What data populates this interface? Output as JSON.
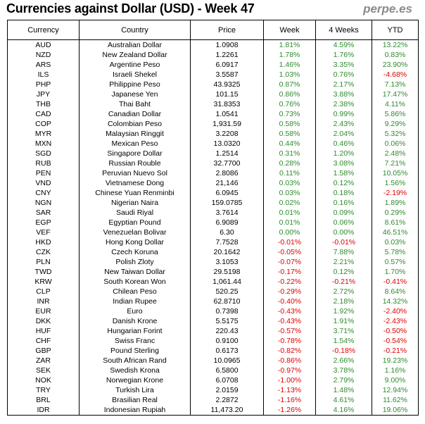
{
  "header": {
    "title": "Currencies against Dollar (USD) - Week 47",
    "brand": "perpe.es"
  },
  "table": {
    "columns": [
      "Currency",
      "Country",
      "Price",
      "Week",
      "4 Weeks",
      "YTD"
    ],
    "rows": [
      [
        "AUD",
        "Australian Dollar",
        "1.0908",
        "1.81%",
        "4.59%",
        "13.22%"
      ],
      [
        "NZD",
        "New Zealand Dollar",
        "1.2261",
        "1.78%",
        "1.76%",
        "0.83%"
      ],
      [
        "ARS",
        "Argentine Peso",
        "6.0917",
        "1.46%",
        "3.35%",
        "23.90%"
      ],
      [
        "ILS",
        "Israeli Shekel",
        "3.5587",
        "1.03%",
        "0.76%",
        "-4.68%"
      ],
      [
        "PHP",
        "Philippine Peso",
        "43.9325",
        "0.87%",
        "2.17%",
        "7.13%"
      ],
      [
        "JPY",
        "Japanese Yen",
        "101.15",
        "0.86%",
        "3.88%",
        "17.47%"
      ],
      [
        "THB",
        "Thai Baht",
        "31.8353",
        "0.76%",
        "2.38%",
        "4.11%"
      ],
      [
        "CAD",
        "Canadian Dollar",
        "1.0541",
        "0.73%",
        "0.99%",
        "5.86%"
      ],
      [
        "COP",
        "Colombian Peso",
        "1,931.59",
        "0.58%",
        "2.43%",
        "9.29%"
      ],
      [
        "MYR",
        "Malaysian Ringgit",
        "3.2208",
        "0.58%",
        "2.04%",
        "5.32%"
      ],
      [
        "MXN",
        "Mexican Peso",
        "13.0320",
        "0.44%",
        "0.46%",
        "0.06%"
      ],
      [
        "SGD",
        "Singapore Dollar",
        "1.2514",
        "0.31%",
        "1.20%",
        "2.48%"
      ],
      [
        "RUB",
        "Russian Rouble",
        "32.7700",
        "0.28%",
        "3.08%",
        "7.21%"
      ],
      [
        "PEN",
        "Peruvian Nuevo Sol",
        "2.8086",
        "0.11%",
        "1.58%",
        "10.05%"
      ],
      [
        "VND",
        "Vietnamese Dong",
        "21,146",
        "0.03%",
        "0.12%",
        "1.56%"
      ],
      [
        "CNY",
        "Chinese Yuan Renminbi",
        "6.0945",
        "0.03%",
        "0.18%",
        "-2.19%"
      ],
      [
        "NGN",
        "Nigerian Naira",
        "159.0785",
        "0.02%",
        "0.16%",
        "1.89%"
      ],
      [
        "SAR",
        "Saudi Riyal",
        "3.7614",
        "0.01%",
        "0.09%",
        "0.29%"
      ],
      [
        "EGP",
        "Egyptian Pound",
        "6.9089",
        "0.01%",
        "0.06%",
        "8.61%"
      ],
      [
        "VEF",
        "Venezuelan Bolivar",
        "6.30",
        "0.00%",
        "0.00%",
        "46.51%"
      ],
      [
        "HKD",
        "Hong Kong Dollar",
        "7.7528",
        "-0.01%",
        "-0.01%",
        "0.03%"
      ],
      [
        "CZK",
        "Czech Koruna",
        "20.1642",
        "-0.05%",
        "7.88%",
        "5.78%"
      ],
      [
        "PLN",
        "Polish Zloty",
        "3.1053",
        "-0.07%",
        "2.21%",
        "0.57%"
      ],
      [
        "TWD",
        "New Taiwan Dollar",
        "29.5198",
        "-0.17%",
        "0.12%",
        "1.70%"
      ],
      [
        "KRW",
        "South Korean Won",
        "1,061.44",
        "-0.22%",
        "-0.21%",
        "-0.41%"
      ],
      [
        "CLP",
        "Chilean Peso",
        "520.25",
        "-0.29%",
        "2.72%",
        "8.64%"
      ],
      [
        "INR",
        "Indian Rupee",
        "62.8710",
        "-0.40%",
        "2.18%",
        "14.32%"
      ],
      [
        "EUR",
        "Euro",
        "0.7398",
        "-0.43%",
        "1.92%",
        "-2.40%"
      ],
      [
        "DKK",
        "Danish Krone",
        "5.5175",
        "-0.43%",
        "1.91%",
        "-2.43%"
      ],
      [
        "HUF",
        "Hungarian Forint",
        "220.43",
        "-0.57%",
        "3.71%",
        "-0.50%"
      ],
      [
        "CHF",
        "Swiss Franc",
        "0.9100",
        "-0.78%",
        "1.54%",
        "-0.54%"
      ],
      [
        "GBP",
        "Pound Sterling",
        "0.6173",
        "-0.82%",
        "-0.18%",
        "-0.21%"
      ],
      [
        "ZAR",
        "South African Rand",
        "10.0965",
        "-0.86%",
        "2.66%",
        "19.23%"
      ],
      [
        "SEK",
        "Swedish Krona",
        "6.5800",
        "-0.97%",
        "3.78%",
        "1.16%"
      ],
      [
        "NOK",
        "Norwegian Krone",
        "6.0708",
        "-1.00%",
        "2.79%",
        "9.00%"
      ],
      [
        "TRY",
        "Turkish Lira",
        "2.0159",
        "-1.13%",
        "1.48%",
        "12.94%"
      ],
      [
        "BRL",
        "Brasilian Real",
        "2.2872",
        "-1.16%",
        "4.61%",
        "11.62%"
      ],
      [
        "IDR",
        "Indonesian Rupiah",
        "11,473.20",
        "-1.26%",
        "4.16%",
        "19.06%"
      ]
    ]
  },
  "colors": {
    "positive": "#2e8b2e",
    "negative": "#e00000"
  }
}
